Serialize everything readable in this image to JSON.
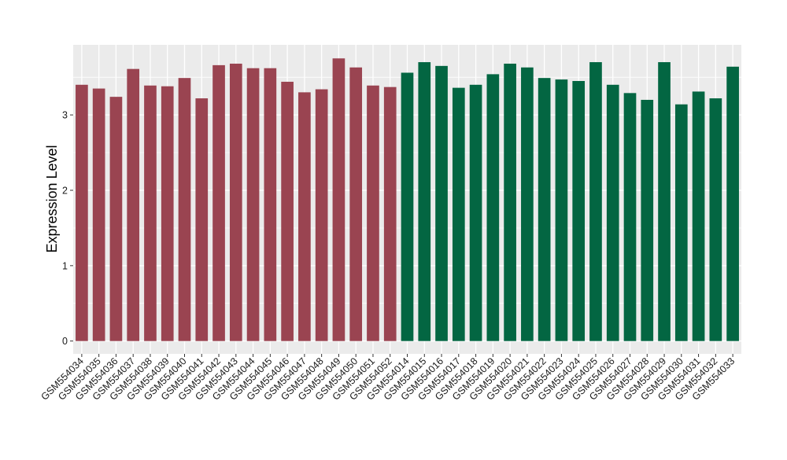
{
  "chart_data": {
    "type": "bar",
    "title": "",
    "xlabel": "",
    "ylabel": "Expression Level",
    "ylim": [
      -0.17,
      3.93
    ],
    "yticks": [
      0,
      1,
      2,
      3
    ],
    "grid": true,
    "legend": "none",
    "categories": [
      "GSM554034",
      "GSM554035",
      "GSM554036",
      "GSM554037",
      "GSM554038",
      "GSM554039",
      "GSM554040",
      "GSM554041",
      "GSM554042",
      "GSM554043",
      "GSM554044",
      "GSM554045",
      "GSM554046",
      "GSM554047",
      "GSM554048",
      "GSM554049",
      "GSM554050",
      "GSM554051",
      "GSM554052",
      "GSM554014",
      "GSM554015",
      "GSM554016",
      "GSM554017",
      "GSM554018",
      "GSM554019",
      "GSM554020",
      "GSM554021",
      "GSM554022",
      "GSM554023",
      "GSM554024",
      "GSM554025",
      "GSM554026",
      "GSM554027",
      "GSM554028",
      "GSM554029",
      "GSM554030",
      "GSM554031",
      "GSM554032",
      "GSM554033"
    ],
    "values": [
      3.4,
      3.35,
      3.24,
      3.61,
      3.39,
      3.38,
      3.49,
      3.22,
      3.66,
      3.68,
      3.62,
      3.62,
      3.44,
      3.3,
      3.34,
      3.75,
      3.63,
      3.39,
      3.37,
      3.56,
      3.7,
      3.65,
      3.36,
      3.4,
      3.54,
      3.68,
      3.63,
      3.49,
      3.47,
      3.45,
      3.7,
      3.4,
      3.29,
      3.2,
      3.7,
      3.14,
      3.31,
      3.22,
      3.64
    ],
    "groups": [
      0,
      0,
      0,
      0,
      0,
      0,
      0,
      0,
      0,
      0,
      0,
      0,
      0,
      0,
      0,
      0,
      0,
      0,
      0,
      1,
      1,
      1,
      1,
      1,
      1,
      1,
      1,
      1,
      1,
      1,
      1,
      1,
      1,
      1,
      1,
      1,
      1,
      1,
      1
    ],
    "colors": [
      "#9a4451",
      "#036642"
    ],
    "panel_background": "#ebebeb",
    "grid_color": "#ffffff"
  }
}
